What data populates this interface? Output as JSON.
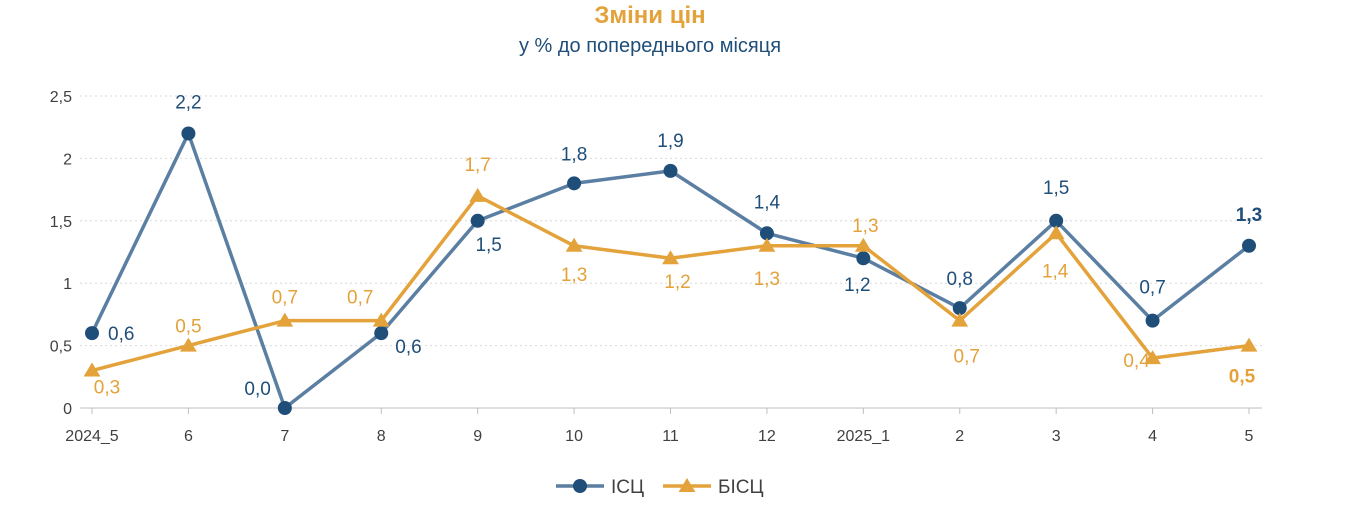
{
  "chart_data": {
    "type": "line",
    "title": "Зміни цін",
    "subtitle": "у % до попереднього місяця",
    "categories": [
      "2024_5",
      "6",
      "7",
      "8",
      "9",
      "10",
      "11",
      "12",
      "2025_1",
      "2",
      "3",
      "4",
      "5"
    ],
    "ylim": [
      0,
      2.5
    ],
    "yticks": [
      "0",
      "0,5",
      "1",
      "1,5",
      "2",
      "2,5"
    ],
    "grid": true,
    "legend_position": "bottom",
    "series": [
      {
        "name": "ІСЦ",
        "color": "#5B7FA3",
        "marker": "circle",
        "values": [
          0.6,
          2.2,
          0.0,
          0.6,
          1.5,
          1.8,
          1.9,
          1.4,
          1.2,
          0.8,
          1.5,
          0.7,
          1.3
        ],
        "labels": [
          "0,6",
          "2,2",
          "0,0",
          "0,6",
          "1,5",
          "1,8",
          "1,9",
          "1,4",
          "1,2",
          "0,8",
          "1,5",
          "0,7",
          "1,3"
        ],
        "label_color": "#1F4E79"
      },
      {
        "name": "БІСЦ",
        "color": "#E3A23A",
        "marker": "triangle",
        "values": [
          0.3,
          0.5,
          0.7,
          0.7,
          1.7,
          1.3,
          1.2,
          1.3,
          1.3,
          0.7,
          1.4,
          0.4,
          0.5
        ],
        "labels": [
          "0,3",
          "0,5",
          "0,7",
          "0,7",
          "1,7",
          "1,3",
          "1,2",
          "1,3",
          "1,3",
          "0,7",
          "1,4",
          "0,4",
          "0,5"
        ],
        "label_color": "#E3A23A"
      }
    ]
  }
}
